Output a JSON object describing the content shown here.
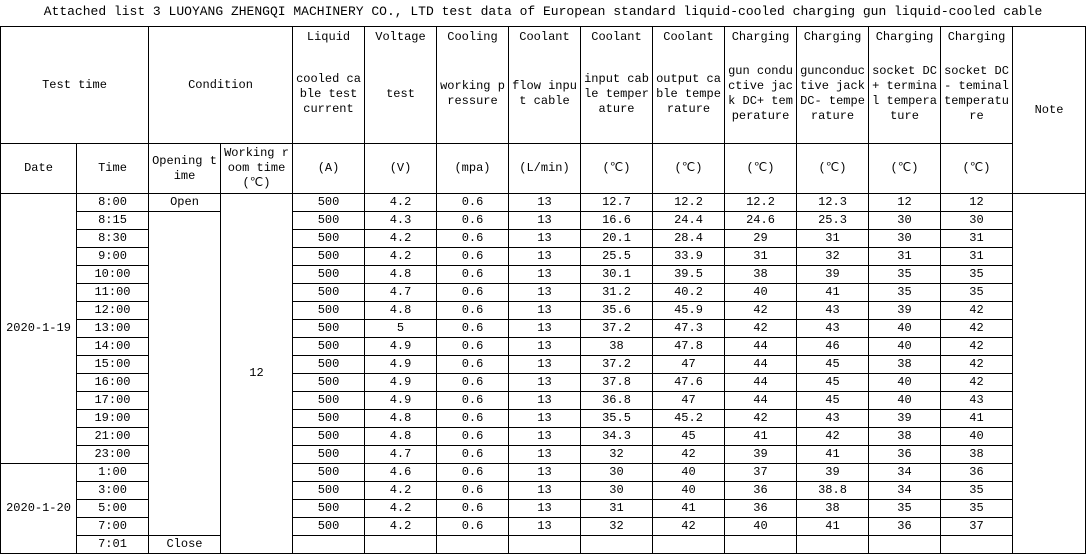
{
  "title": "Attached list 3 LUOYANG ZHENGQI MACHINERY CO., LTD test data of European standard liquid-cooled charging gun liquid-cooled cable",
  "header": {
    "test_time": "Test time",
    "condition": "Condition",
    "note": "Note",
    "date": "Date",
    "time": "Time",
    "opening_time": "Opening time",
    "working_room": "Working room time(℃)",
    "columns": [
      {
        "label": "Liquid",
        "description": "cooled cable test current",
        "unit": "(A)"
      },
      {
        "label": "Voltage",
        "description": "test",
        "unit": "(V)"
      },
      {
        "label": "Cooling",
        "description": "working pressure",
        "unit": "(mpa)"
      },
      {
        "label": "Coolant",
        "description": "flow input cable",
        "unit": "(L/min)"
      },
      {
        "label": "Coolant",
        "description": "input cable temperature",
        "unit": "(℃)"
      },
      {
        "label": "Coolant",
        "description": "output cable temperature",
        "unit": "(℃)"
      },
      {
        "label": "Charging",
        "description": "gun conductive jack DC+ temperature",
        "unit": "(℃)"
      },
      {
        "label": "Charging",
        "description": "gunconductive jack DC- temperature",
        "unit": "(℃)"
      },
      {
        "label": "Charging",
        "description": "socket DC+ terminal temperature",
        "unit": "(℃)"
      },
      {
        "label": "Charging",
        "description": "socket DC- teminal temperature",
        "unit": "(℃)"
      }
    ]
  },
  "condition": {
    "open": "Open",
    "close": "Close",
    "working_room_value": "12"
  },
  "groups": [
    {
      "date": "2020-1-19",
      "rows": [
        {
          "time": "8:00",
          "values": [
            "500",
            "4.2",
            "0.6",
            "13",
            "12.7",
            "12.2",
            "12.2",
            "12.3",
            "12",
            "12"
          ]
        },
        {
          "time": "8:15",
          "values": [
            "500",
            "4.3",
            "0.6",
            "13",
            "16.6",
            "24.4",
            "24.6",
            "25.3",
            "30",
            "30"
          ]
        },
        {
          "time": "8:30",
          "values": [
            "500",
            "4.2",
            "0.6",
            "13",
            "20.1",
            "28.4",
            "29",
            "31",
            "30",
            "31"
          ]
        },
        {
          "time": "9:00",
          "values": [
            "500",
            "4.2",
            "0.6",
            "13",
            "25.5",
            "33.9",
            "31",
            "32",
            "31",
            "31"
          ]
        },
        {
          "time": "10:00",
          "values": [
            "500",
            "4.8",
            "0.6",
            "13",
            "30.1",
            "39.5",
            "38",
            "39",
            "35",
            "35"
          ]
        },
        {
          "time": "11:00",
          "values": [
            "500",
            "4.7",
            "0.6",
            "13",
            "31.2",
            "40.2",
            "40",
            "41",
            "35",
            "35"
          ]
        },
        {
          "time": "12:00",
          "values": [
            "500",
            "4.8",
            "0.6",
            "13",
            "35.6",
            "45.9",
            "42",
            "43",
            "39",
            "42"
          ]
        },
        {
          "time": "13:00",
          "values": [
            "500",
            "5",
            "0.6",
            "13",
            "37.2",
            "47.3",
            "42",
            "43",
            "40",
            "42"
          ]
        },
        {
          "time": "14:00",
          "values": [
            "500",
            "4.9",
            "0.6",
            "13",
            "38",
            "47.8",
            "44",
            "46",
            "40",
            "42"
          ]
        },
        {
          "time": "15:00",
          "values": [
            "500",
            "4.9",
            "0.6",
            "13",
            "37.2",
            "47",
            "44",
            "45",
            "38",
            "42"
          ]
        },
        {
          "time": "16:00",
          "values": [
            "500",
            "4.9",
            "0.6",
            "13",
            "37.8",
            "47.6",
            "44",
            "45",
            "40",
            "42"
          ]
        },
        {
          "time": "17:00",
          "values": [
            "500",
            "4.9",
            "0.6",
            "13",
            "36.8",
            "47",
            "44",
            "45",
            "40",
            "43"
          ]
        },
        {
          "time": "19:00",
          "values": [
            "500",
            "4.8",
            "0.6",
            "13",
            "35.5",
            "45.2",
            "42",
            "43",
            "39",
            "41"
          ]
        },
        {
          "time": "21:00",
          "values": [
            "500",
            "4.8",
            "0.6",
            "13",
            "34.3",
            "45",
            "41",
            "42",
            "38",
            "40"
          ]
        },
        {
          "time": "23:00",
          "values": [
            "500",
            "4.7",
            "0.6",
            "13",
            "32",
            "42",
            "39",
            "41",
            "36",
            "38"
          ]
        }
      ]
    },
    {
      "date": "2020-1-20",
      "rows": [
        {
          "time": "1:00",
          "values": [
            "500",
            "4.6",
            "0.6",
            "13",
            "30",
            "40",
            "37",
            "39",
            "34",
            "36"
          ]
        },
        {
          "time": "3:00",
          "values": [
            "500",
            "4.2",
            "0.6",
            "13",
            "30",
            "40",
            "36",
            "38.8",
            "34",
            "35"
          ]
        },
        {
          "time": "5:00",
          "values": [
            "500",
            "4.2",
            "0.6",
            "13",
            "31",
            "41",
            "36",
            "38",
            "35",
            "35"
          ]
        },
        {
          "time": "7:00",
          "values": [
            "500",
            "4.2",
            "0.6",
            "13",
            "32",
            "42",
            "40",
            "41",
            "36",
            "37"
          ]
        },
        {
          "time": "7:01"
        }
      ]
    }
  ]
}
